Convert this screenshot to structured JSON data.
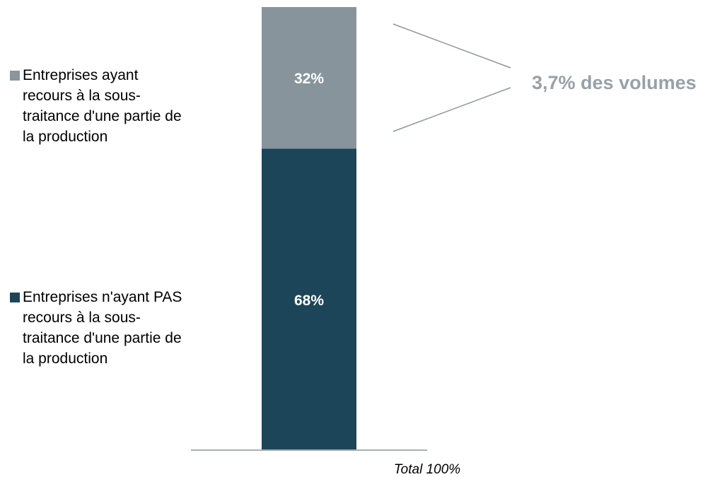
{
  "chart_data": {
    "type": "bar",
    "stacked": true,
    "categories": [
      "Total 100%"
    ],
    "series": [
      {
        "name": "Entreprises n'ayant PAS recours à la sous-traitance d'une partie de la production",
        "values": [
          68
        ],
        "label": "68%",
        "color": "#1d4559"
      },
      {
        "name": "Entreprises ayant recours à la sous-traitance d'une partie de la production",
        "values": [
          32
        ],
        "label": "32%",
        "color": "#87949c"
      }
    ],
    "ylim": [
      0,
      100
    ],
    "annotation": "3,7% des volumes",
    "annotation_color": "#97a1a8",
    "legend_placement": "left",
    "grid": false
  }
}
